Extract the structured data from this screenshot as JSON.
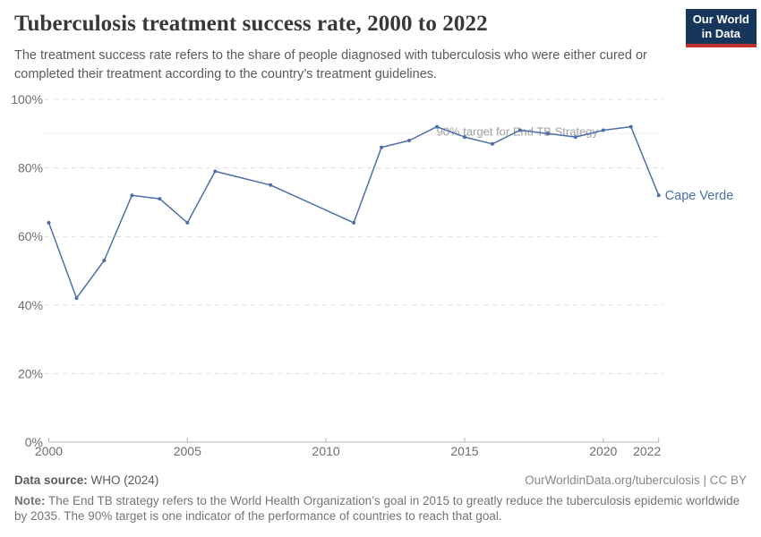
{
  "header": {
    "title": "Tuberculosis treatment success rate, 2000 to 2022",
    "subtitle": "The treatment success rate refers to the share of people diagnosed with tuberculosis who were either cured or completed their treatment according to the country’s treatment guidelines.",
    "logo_line1": "Our World",
    "logo_line2": "in Data"
  },
  "chart_data": {
    "type": "line",
    "title": "Tuberculosis treatment success rate, 2000 to 2022",
    "series": [
      {
        "name": "Cape Verde",
        "color": "#4d6fa9",
        "x": [
          2000,
          2001,
          2002,
          2003,
          2004,
          2005,
          2006,
          2008,
          2011,
          2012,
          2013,
          2014,
          2015,
          2016,
          2017,
          2018,
          2019,
          2020,
          2021,
          2022
        ],
        "y": [
          64,
          42,
          53,
          72,
          71,
          64,
          79,
          75,
          64,
          86,
          88,
          92,
          89,
          87,
          91,
          90,
          89,
          91,
          92,
          72
        ]
      }
    ],
    "xlabel": "",
    "ylabel": "",
    "xlim": [
      2000,
      2022
    ],
    "ylim": [
      0,
      100
    ],
    "x_ticks": [
      2000,
      2005,
      2010,
      2015,
      2020,
      2022
    ],
    "y_ticks": [
      0,
      20,
      40,
      60,
      80,
      100
    ],
    "y_tick_suffix": "%",
    "grid": "horizontal-dashed",
    "legend_position": "end-of-line-label",
    "reference_line": {
      "value": 90,
      "label": "90% target for End TB Strategy"
    },
    "colors": {
      "grid": "#dcdcdc",
      "reference": "#c9c9c9",
      "axis": "#b3b3b3",
      "tick_label": "#6e6e6e",
      "annotation": "#a3a3a3"
    }
  },
  "footer": {
    "source_label": "Data source:",
    "source_value": "WHO (2024)",
    "attribution": "OurWorldinData.org/tuberculosis | CC BY",
    "note_label": "Note:",
    "note_text": "The End TB strategy refers to the World Health Organization’s goal in 2015 to greatly reduce the tuberculosis epidemic worldwide by 2035. The 90% target is one indicator of the performance of countries to reach that goal."
  }
}
